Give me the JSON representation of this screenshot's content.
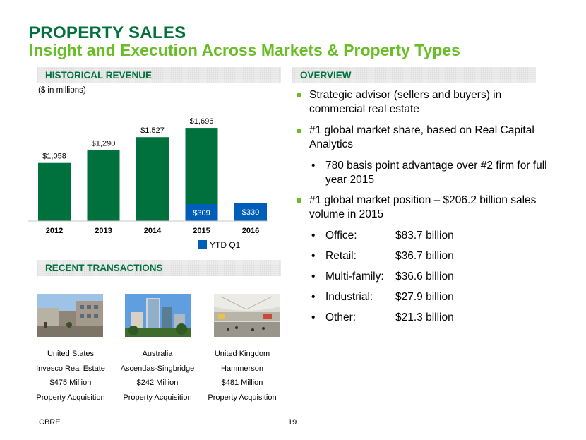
{
  "header": {
    "title": "PROPERTY SALES",
    "subtitle": "Insight and Execution Across Markets & Property Types"
  },
  "historical": {
    "section_label": "HISTORICAL REVENUE",
    "units": "($ in millions)",
    "legend_label": "YTD Q1"
  },
  "chart_data": {
    "type": "bar",
    "categories": [
      "2012",
      "2013",
      "2014",
      "2015",
      "2016"
    ],
    "series": [
      {
        "name": "",
        "values": [
          1058,
          1290,
          1527,
          1696,
          null
        ],
        "labels": [
          "$1,058",
          "$1,290",
          "$1,527",
          "$1,696",
          ""
        ]
      },
      {
        "name": "YTD Q1",
        "values": [
          null,
          null,
          null,
          309,
          330
        ],
        "labels": [
          "",
          "",
          "",
          "$309",
          "$330"
        ]
      }
    ],
    "colors": {
      "annual": "#00703c",
      "ytd": "#005eb8"
    },
    "ylim": [
      0,
      1800
    ],
    "legend_position": "bottom-right",
    "grid": false
  },
  "recent": {
    "section_label": "RECENT TRANSACTIONS",
    "transactions": [
      {
        "country": "United States",
        "party": "Invesco Real Estate",
        "amount": "$475 Million",
        "type": "Property Acquisition"
      },
      {
        "country": "Australia",
        "party": "Ascendas-Singbridge",
        "amount": "$242 Million",
        "type": "Property Acquisition"
      },
      {
        "country": "United Kingdom",
        "party": "Hammerson",
        "amount": "$481 Million",
        "type": "Property Acquisition"
      }
    ]
  },
  "overview": {
    "section_label": "OVERVIEW",
    "bullet1": "Strategic advisor (sellers and buyers) in commercial real estate",
    "bullet2": "#1 global market share, based on Real Capital Analytics",
    "bullet2_sub": "780 basis point advantage over #2 firm for full year 2015",
    "bullet3": "#1 global market position – $206.2 billion sales volume in 2015",
    "breakdown": [
      {
        "label": "Office:",
        "value": "$83.7 billion"
      },
      {
        "label": "Retail:",
        "value": "$36.7 billion"
      },
      {
        "label": "Multi-family:",
        "value": "$36.6 billion"
      },
      {
        "label": "Industrial:",
        "value": "$27.9 billion"
      },
      {
        "label": "Other:",
        "value": "$21.3 billion"
      }
    ],
    "bullet_glyph": "•"
  },
  "footer": {
    "brand": "CBRE",
    "page_number": "19"
  }
}
